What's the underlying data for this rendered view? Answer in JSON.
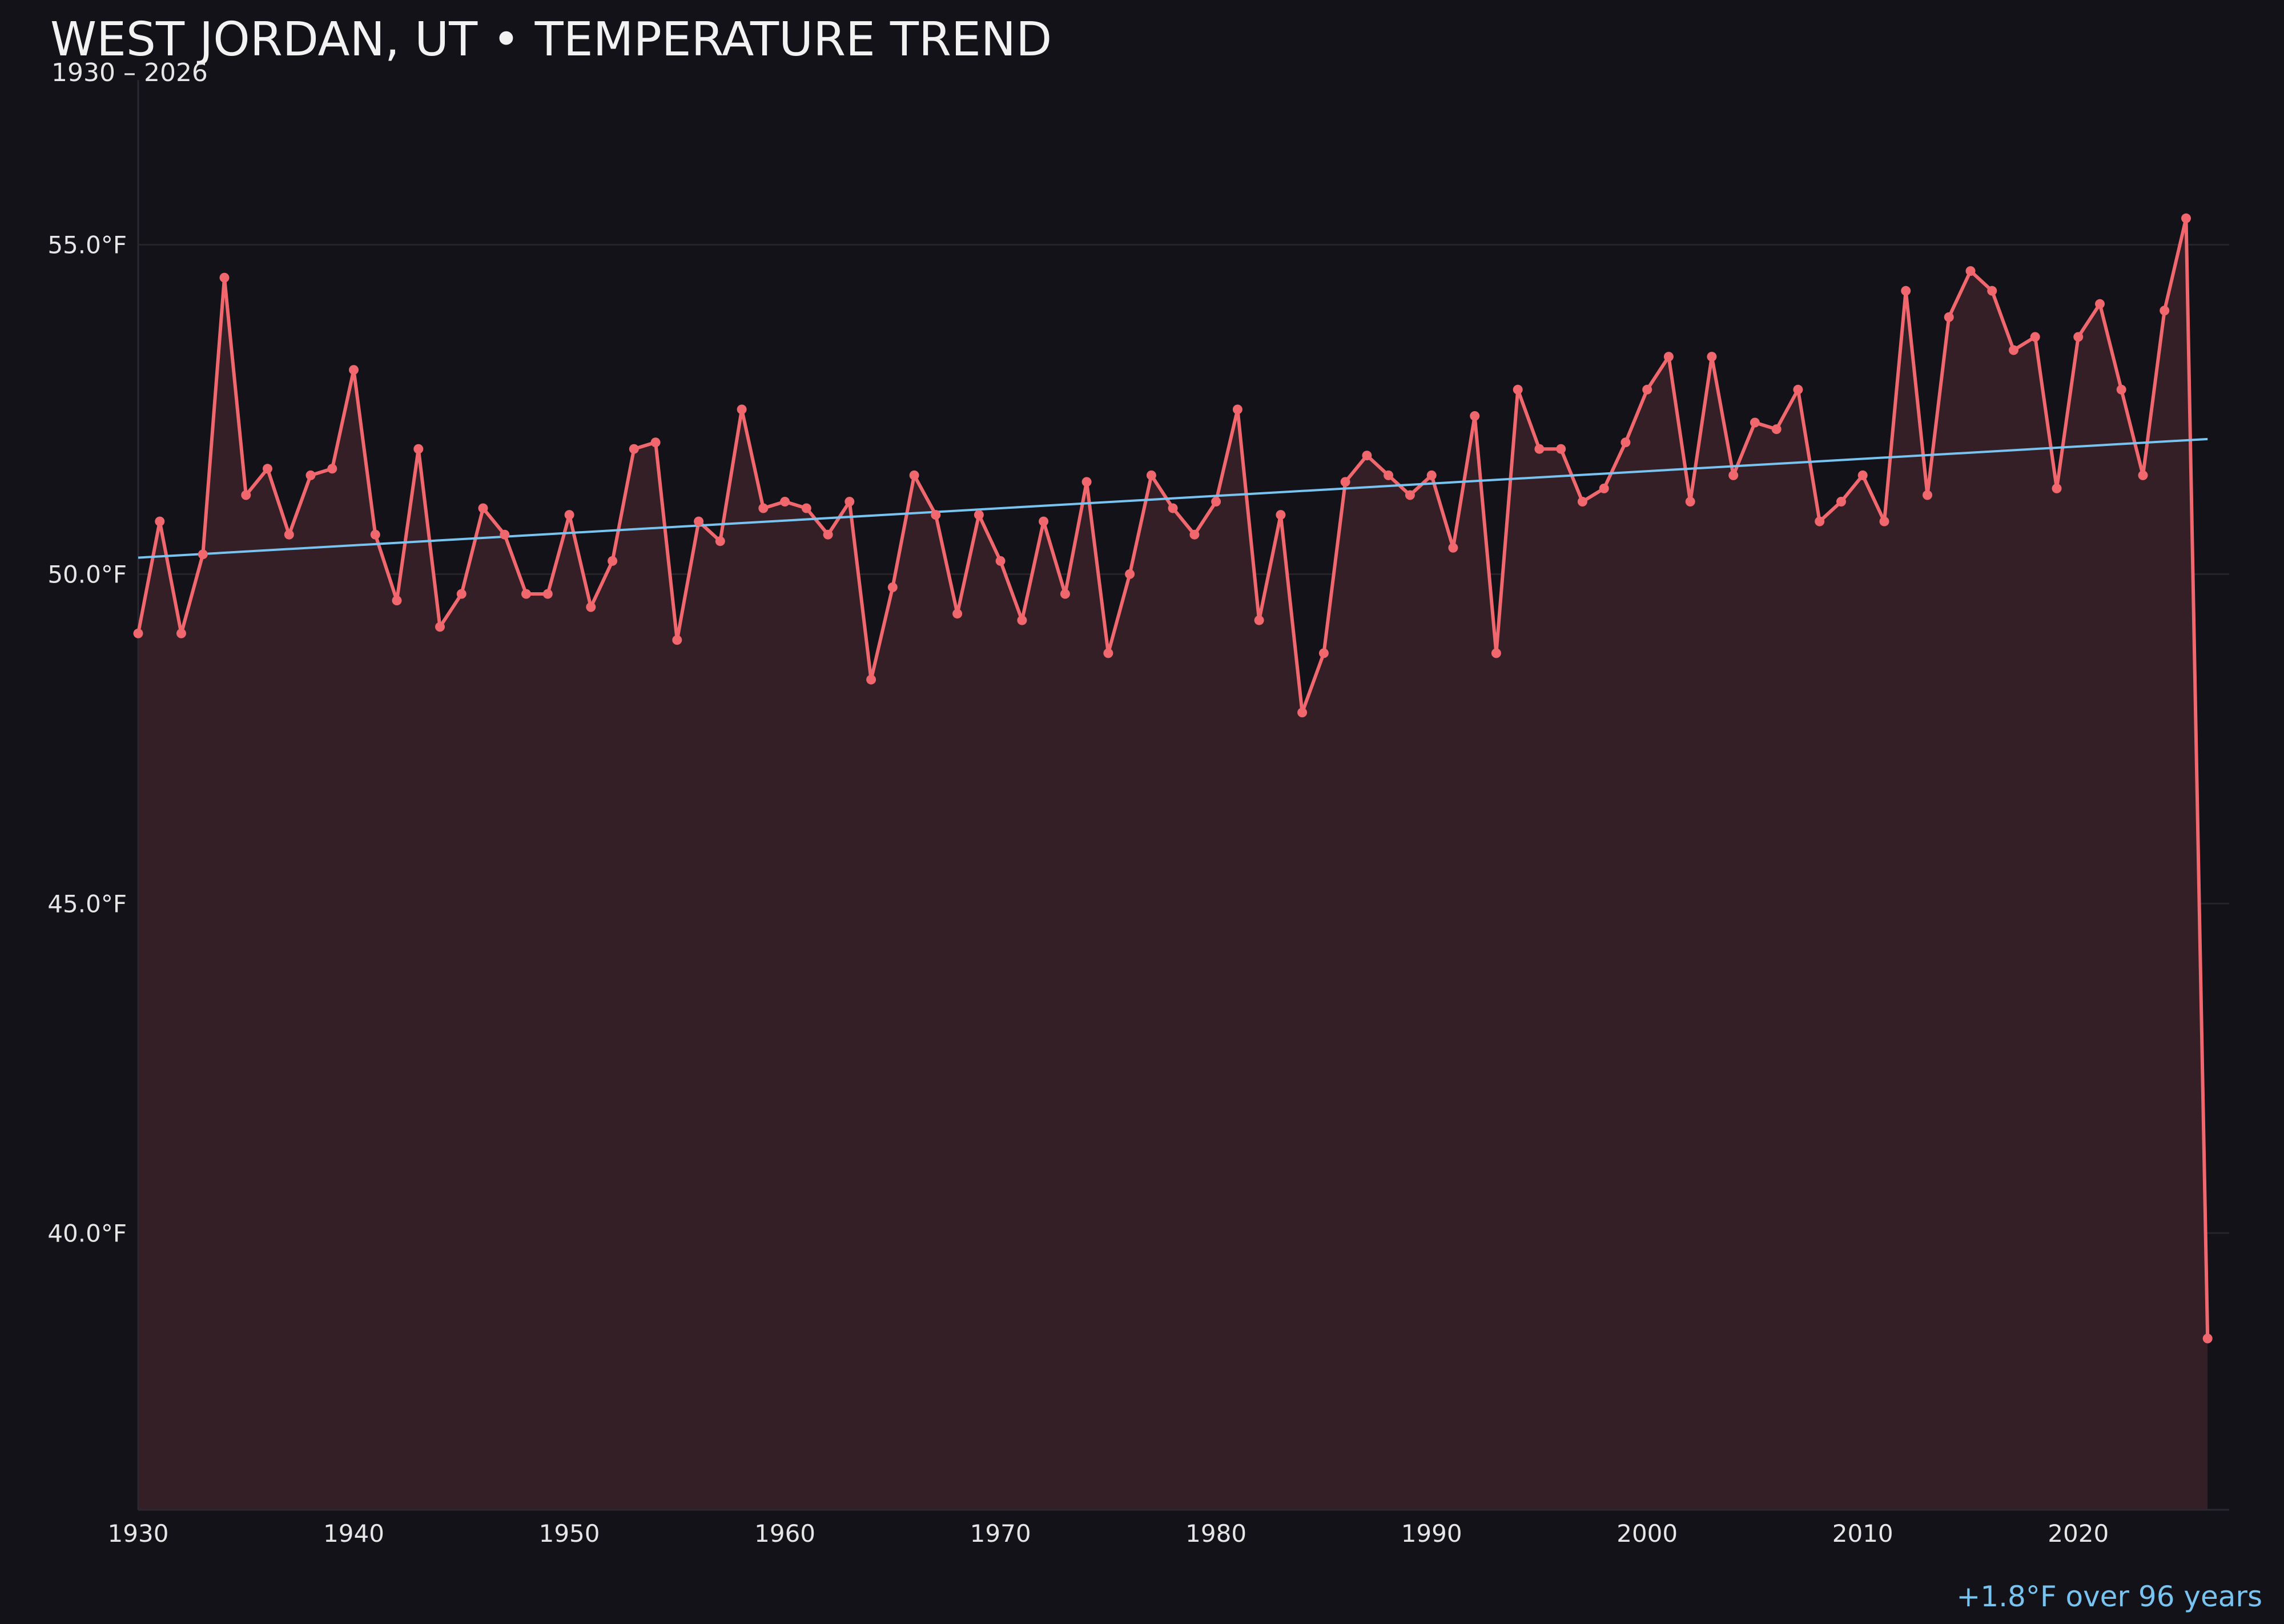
{
  "chart_data": {
    "type": "line",
    "title": "WEST JORDAN, UT • TEMPERATURE TREND",
    "subtitle": "1930 – 2026",
    "xlabel": "",
    "ylabel": "",
    "xlim": [
      1930,
      2027
    ],
    "ylim": [
      35.8,
      57.5
    ],
    "x_ticks": [
      1930,
      1940,
      1950,
      1960,
      1970,
      1980,
      1990,
      2000,
      2010,
      2020
    ],
    "x_tick_labels": [
      "1930",
      "1940",
      "1950",
      "1960",
      "1970",
      "1980",
      "1990",
      "2000",
      "2010",
      "2020"
    ],
    "y_ticks": [
      40,
      45,
      50,
      55
    ],
    "y_tick_labels": [
      "40.0°F",
      "45.0°F",
      "50.0°F",
      "55.0°F"
    ],
    "grid": true,
    "annotation": "+1.8°F over 96 years",
    "colors": {
      "background": "#131218",
      "series": "#f0686e",
      "fill": "#341f26",
      "trend": "#78c3f0",
      "annotation": "#78c3f0",
      "grid": "#262329",
      "text": "#e6e6e6"
    },
    "series": [
      {
        "x": [
          1930,
          1931,
          1932,
          1933,
          1934,
          1935,
          1936,
          1937,
          1938,
          1939,
          1940,
          1941,
          1942,
          1943,
          1944,
          1945,
          1946,
          1947,
          1948,
          1949,
          1950,
          1951,
          1952,
          1953,
          1954,
          1955,
          1956,
          1957,
          1958,
          1959,
          1960,
          1961,
          1962,
          1963,
          1964,
          1965,
          1966,
          1967,
          1968,
          1969,
          1970,
          1971,
          1972,
          1973,
          1974,
          1975,
          1976,
          1977,
          1978,
          1979,
          1980,
          1981,
          1982,
          1983,
          1984,
          1985,
          1986,
          1987,
          1988,
          1989,
          1990,
          1991,
          1992,
          1993,
          1994,
          1995,
          1996,
          1997,
          1998,
          1999,
          2000,
          2001,
          2002,
          2003,
          2004,
          2005,
          2006,
          2007,
          2008,
          2009,
          2010,
          2011,
          2012,
          2013,
          2014,
          2015,
          2016,
          2017,
          2018,
          2019,
          2020,
          2021,
          2022,
          2023,
          2024,
          2025,
          2026
        ],
        "values": [
          49.1,
          50.8,
          49.1,
          50.3,
          54.5,
          51.2,
          51.6,
          50.6,
          51.5,
          51.6,
          53.1,
          50.6,
          49.6,
          51.9,
          49.2,
          49.7,
          51.0,
          50.6,
          49.7,
          49.7,
          50.9,
          49.5,
          50.2,
          51.9,
          52.0,
          49.0,
          50.8,
          50.5,
          52.5,
          51.0,
          51.1,
          51.0,
          50.6,
          51.1,
          48.4,
          49.8,
          51.5,
          50.9,
          49.4,
          50.9,
          50.2,
          49.3,
          50.8,
          49.7,
          51.4,
          48.8,
          50.0,
          51.5,
          51.0,
          50.6,
          51.1,
          52.5,
          49.3,
          50.9,
          47.9,
          48.8,
          51.4,
          51.8,
          51.5,
          51.2,
          51.5,
          50.4,
          52.4,
          48.8,
          52.8,
          51.9,
          51.9,
          51.1,
          51.3,
          52.0,
          52.8,
          53.3,
          51.1,
          53.3,
          51.5,
          52.3,
          52.2,
          52.8,
          50.8,
          51.1,
          51.5,
          50.8,
          54.3,
          51.2,
          53.9,
          54.6,
          54.3,
          53.4,
          53.6,
          51.3,
          53.6,
          54.1,
          52.8,
          51.5,
          54.0,
          55.4,
          38.4
        ]
      }
    ],
    "trend": {
      "x": [
        1930,
        2026
      ],
      "values": [
        50.25,
        52.05
      ]
    }
  }
}
